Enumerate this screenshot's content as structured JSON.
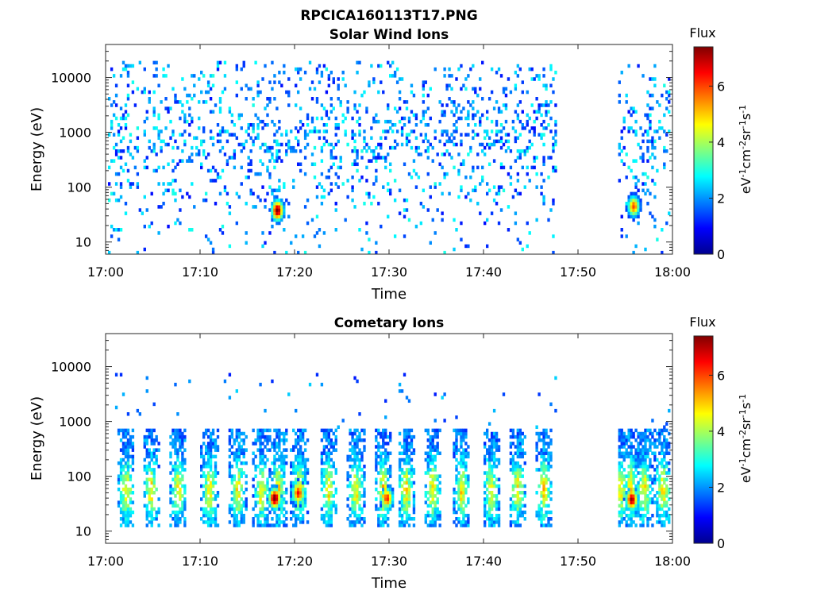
{
  "figure_title": "RPCICA160113T17.PNG",
  "chart_data": [
    {
      "type": "heatmap",
      "title": "Solar Wind Ions",
      "xlabel": "Time",
      "ylabel": "Energy (eV)",
      "x_ticks": [
        "17:00",
        "17:10",
        "17:20",
        "17:30",
        "17:40",
        "17:50",
        "18:00"
      ],
      "xlim_minutes": [
        0,
        60
      ],
      "y_ticks": [
        "10",
        "100",
        "1000",
        "10000"
      ],
      "ylim": [
        6,
        40000
      ],
      "y_scale": "log",
      "colorbar": {
        "title": "Flux",
        "label": "eV-1cm-2sr-1s-1",
        "ticks": [
          "0",
          "2",
          "4",
          "6"
        ],
        "range": [
          0,
          7.4
        ],
        "colormap": "jet"
      },
      "data_gap": [
        47.8,
        54.2
      ],
      "hotspots": [
        {
          "minute": 18.2,
          "energy": 38,
          "flux": 7.0
        },
        {
          "minute": 55.9,
          "energy": 45,
          "flux": 5.5
        }
      ],
      "summary": "Sparse low-flux (about 1-3) counts spread over 10 eV to 20 keV, denser between 100 eV and 3 keV; localized high flux near 30-50 eV around 17:17-17:19 and 17:55-17:57."
    },
    {
      "type": "heatmap",
      "title": "Cometary Ions",
      "xlabel": "Time",
      "ylabel": "Energy (eV)",
      "x_ticks": [
        "17:00",
        "17:10",
        "17:20",
        "17:30",
        "17:40",
        "17:50",
        "18:00"
      ],
      "xlim_minutes": [
        0,
        60
      ],
      "y_ticks": [
        "10",
        "100",
        "1000",
        "10000"
      ],
      "ylim": [
        6,
        40000
      ],
      "y_scale": "log",
      "colorbar": {
        "title": "Flux",
        "label": "eV-1cm-2sr-1s-1",
        "ticks": [
          "0",
          "2",
          "4",
          "6"
        ],
        "range": [
          0,
          7.4
        ],
        "colormap": "jet"
      },
      "data_gap": [
        47.8,
        54.2
      ],
      "bursts_minutes": [
        2.2,
        4.8,
        7.7,
        11.0,
        14.0,
        16.5,
        18.3,
        20.5,
        23.6,
        26.5,
        29.4,
        31.8,
        34.6,
        37.7,
        40.8,
        43.6,
        46.4,
        54.5,
        55.6,
        57.0,
        59.0
      ],
      "hotspots": [
        {
          "minute": 17.9,
          "energy": 40,
          "flux": 7.2
        },
        {
          "minute": 20.4,
          "energy": 50,
          "flux": 6.0
        },
        {
          "minute": 29.8,
          "energy": 40,
          "flux": 5.8
        },
        {
          "minute": 55.7,
          "energy": 38,
          "flux": 6.8
        }
      ],
      "summary": "Periodic bursts roughly every 2.5-3 minutes spanning 15-600 eV with peak flux near 30-60 eV; no data 17:48-17:54."
    }
  ]
}
